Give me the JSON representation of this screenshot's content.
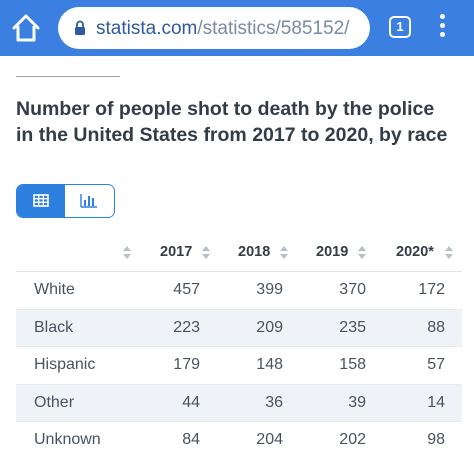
{
  "browser": {
    "url_domain": "statista.com",
    "url_path": "/statistics/585152/",
    "tab_count": "1"
  },
  "page": {
    "title": "Number of people shot to death by the police in the United States from 2017 to 2020, by race"
  },
  "table": {
    "headers": [
      "2017",
      "2018",
      "2019",
      "2020*"
    ],
    "rows": [
      {
        "label": "White",
        "values": [
          "457",
          "399",
          "370",
          "172"
        ]
      },
      {
        "label": "Black",
        "values": [
          "223",
          "209",
          "235",
          "88"
        ]
      },
      {
        "label": "Hispanic",
        "values": [
          "179",
          "148",
          "158",
          "57"
        ]
      },
      {
        "label": "Other",
        "values": [
          "44",
          "36",
          "39",
          "14"
        ]
      },
      {
        "label": "Unknown",
        "values": [
          "84",
          "204",
          "202",
          "98"
        ]
      }
    ]
  },
  "colors": {
    "browser_bar": "#3b7fe0",
    "accent": "#2d7fe0",
    "alt_row": "#eff2f6"
  },
  "icons": {
    "home": "home-icon",
    "lock": "lock-icon",
    "menu": "more-vert-icon",
    "table_view": "table-icon",
    "chart_view": "bar-chart-icon"
  }
}
